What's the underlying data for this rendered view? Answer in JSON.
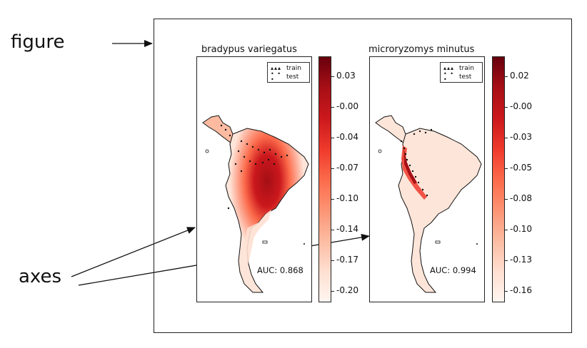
{
  "labels": {
    "figure": "figure",
    "axes": "axes"
  },
  "panels": [
    {
      "title": "bradypus variegatus",
      "auc_text": "AUC: 0.868",
      "legend": [
        {
          "label": "train",
          "marker": "▴▴▴"
        },
        {
          "label": "test",
          "marker": "• • •"
        }
      ],
      "colorbar": {
        "tick_labels": [
          "0.03",
          "-0.00",
          "-0.04",
          "-0.07",
          "-0.10",
          "-0.14",
          "-0.17",
          "-0.20"
        ]
      }
    },
    {
      "title": "microryzomys minutus",
      "auc_text": "AUC: 0.994",
      "legend": [
        {
          "label": "train",
          "marker": "▴▴▴"
        },
        {
          "label": "test",
          "marker": "• • •"
        }
      ],
      "colorbar": {
        "tick_labels": [
          "0.02",
          "-0.00",
          "-0.03",
          "-0.05",
          "-0.08",
          "-0.10",
          "-0.13",
          "-0.16"
        ]
      }
    }
  ],
  "colors": {
    "colormap_high": "#67000d",
    "colormap_low": "#fff5f0",
    "frame": "#222222"
  }
}
